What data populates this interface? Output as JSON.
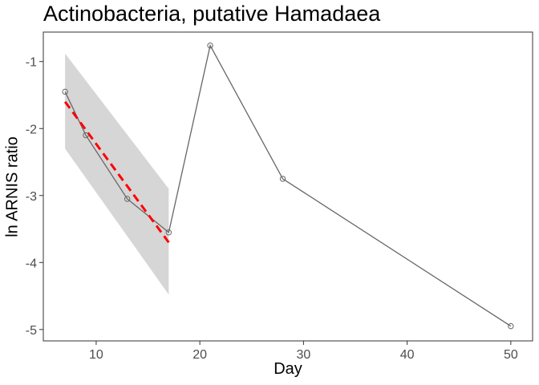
{
  "chart_data": {
    "type": "line",
    "title": "Actinobacteria, putative Hamadaea",
    "xlabel": "Day",
    "ylabel": "ln ARNIS ratio",
    "xlim": [
      4.9,
      52.1
    ],
    "ylim": [
      -5.17,
      -0.56
    ],
    "x_ticks": [
      10,
      20,
      30,
      40,
      50
    ],
    "y_ticks": [
      -5,
      -4,
      -3,
      -2,
      -1
    ],
    "x_tick_labels": [
      "10",
      "20",
      "30",
      "40",
      "50"
    ],
    "y_tick_labels": [
      "-5",
      "-4",
      "-3",
      "-2",
      "-1"
    ],
    "grid": false,
    "series": [
      {
        "type": "line",
        "color": "#666666",
        "marker": "open-circle",
        "x": [
          7,
          9,
          13,
          17,
          21,
          28,
          50
        ],
        "y": [
          -1.45,
          -2.1,
          -3.05,
          -3.55,
          -0.76,
          -2.75,
          -4.95
        ]
      }
    ],
    "fit": {
      "type": "linear",
      "color": "#ff0000",
      "style": "dashed",
      "x": [
        7,
        17
      ],
      "y": [
        -1.6,
        -3.7
      ],
      "ci_color": "#d6d6d6",
      "ci_upper": [
        -0.88,
        -2.9
      ],
      "ci_lower": [
        -2.3,
        -4.48
      ]
    }
  }
}
